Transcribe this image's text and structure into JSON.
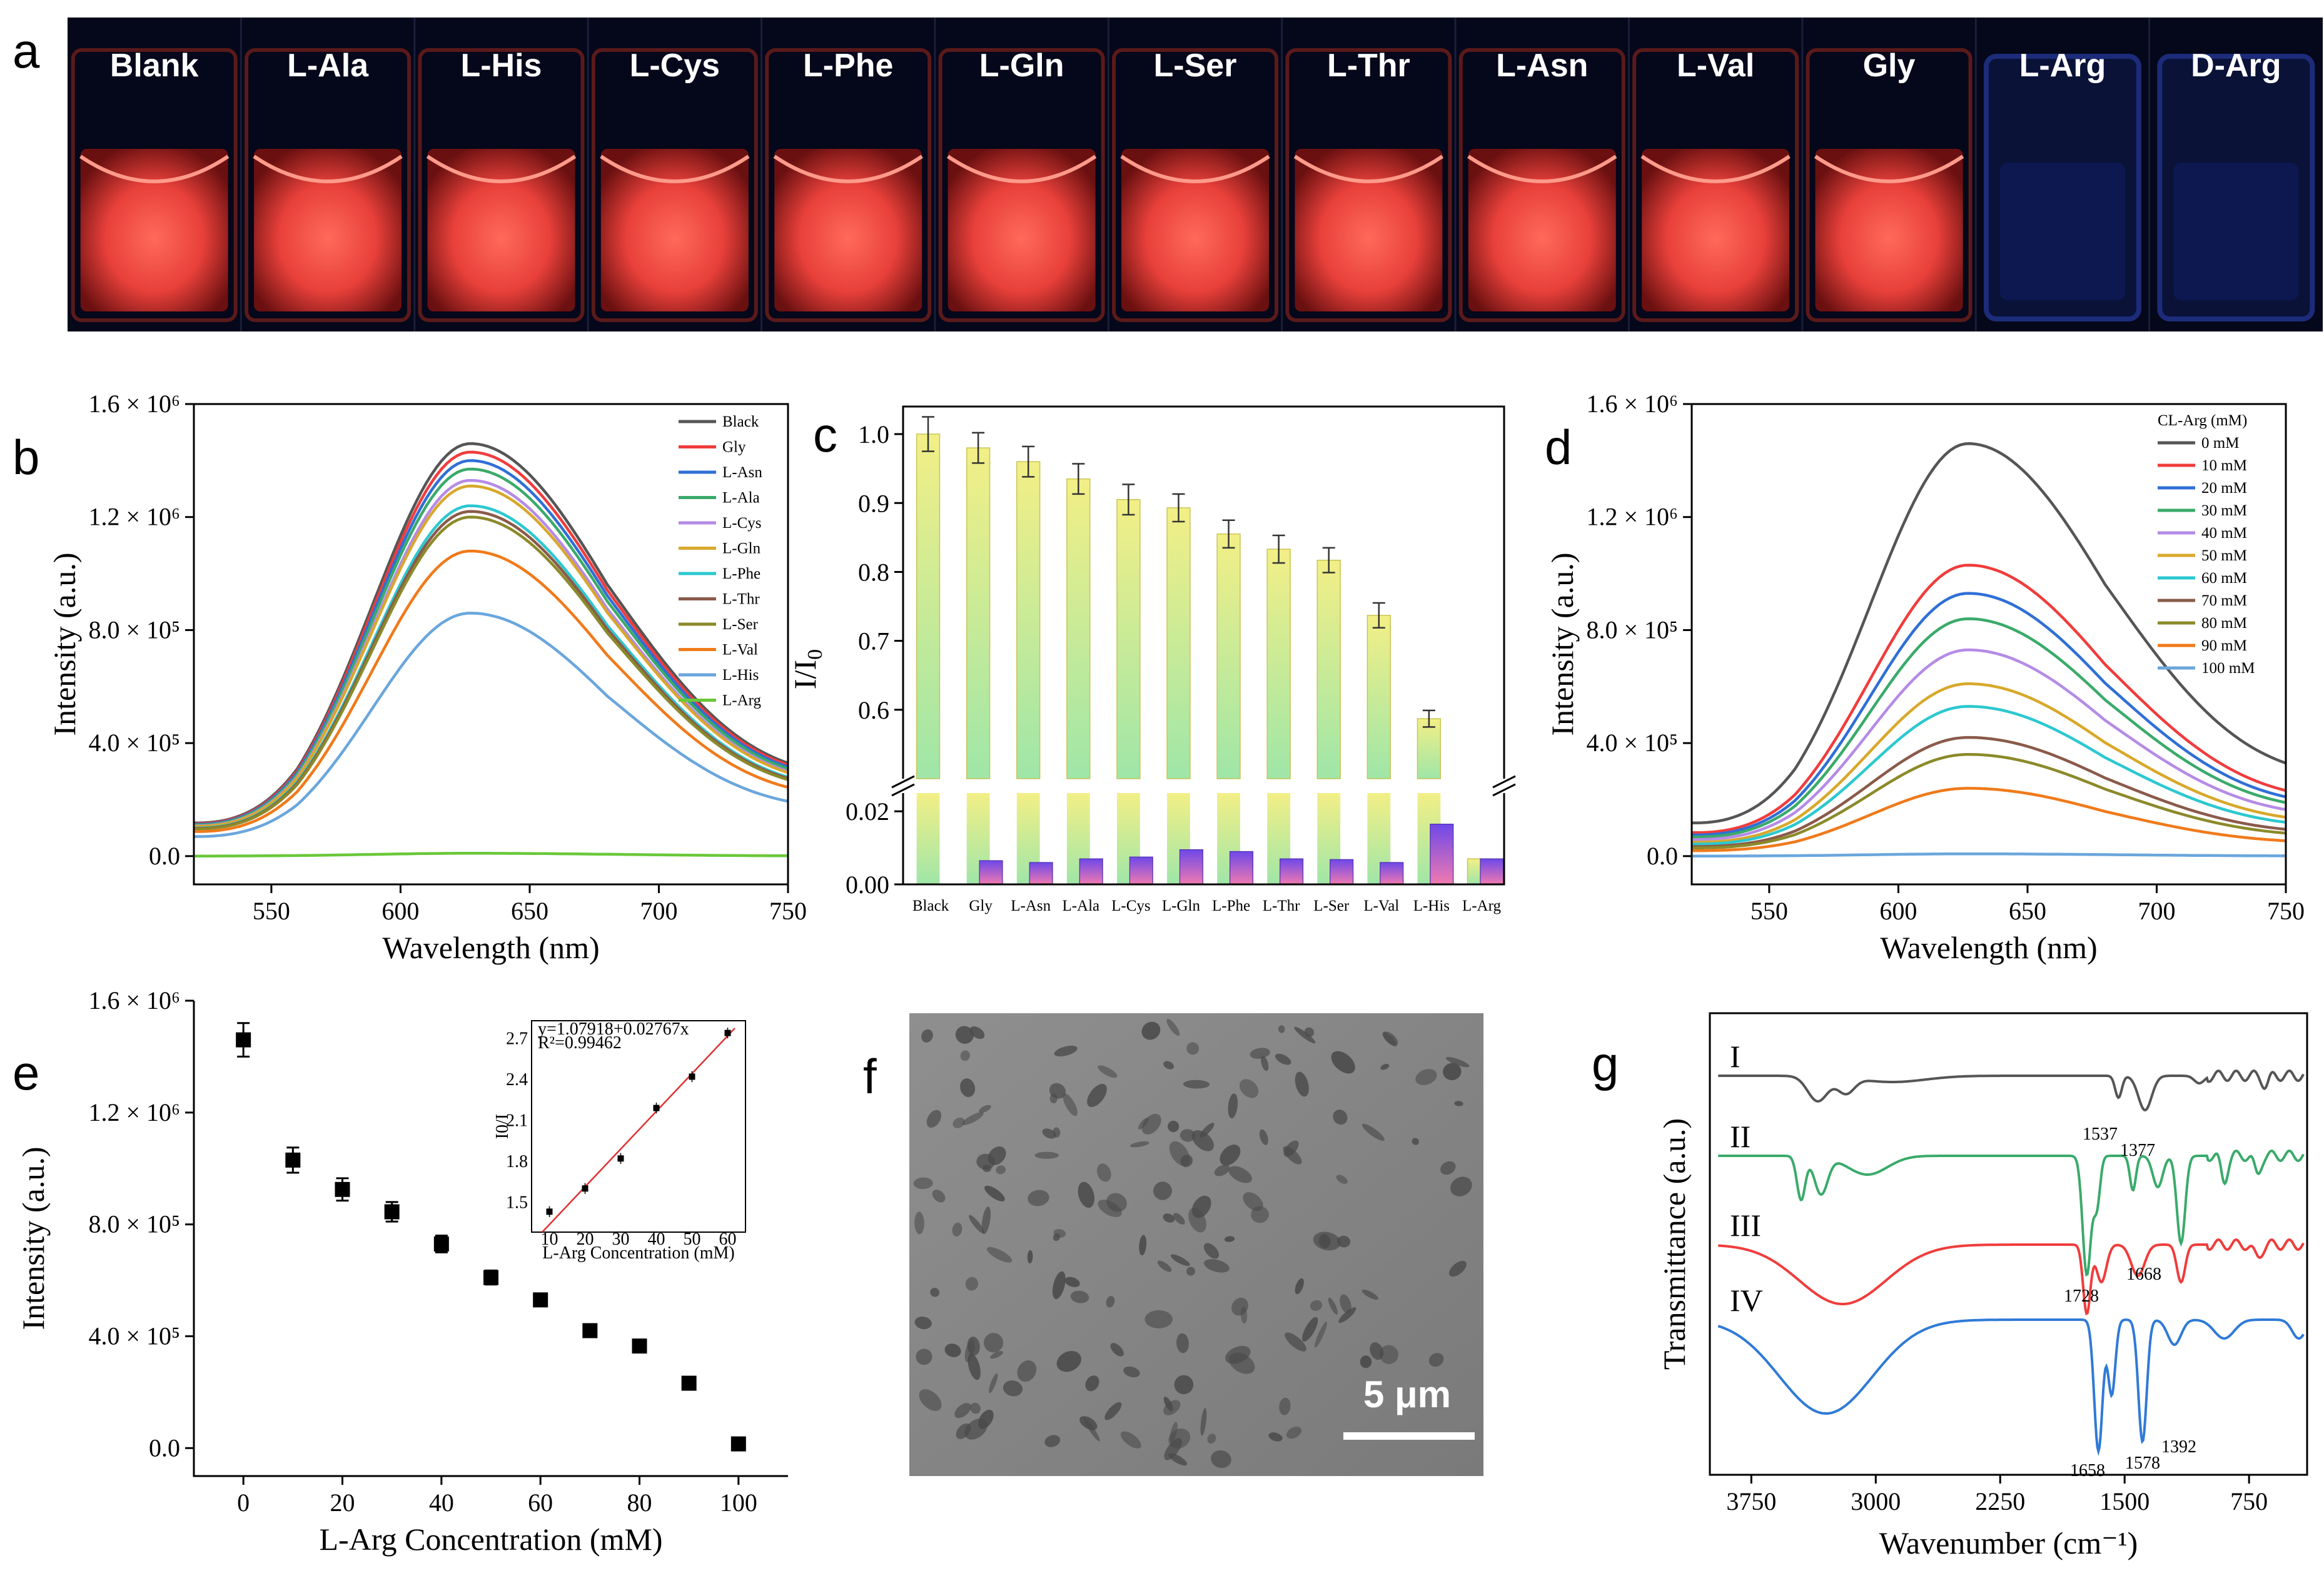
{
  "panel_letters": {
    "a": "a",
    "b": "b",
    "c": "c",
    "d": "d",
    "e": "e",
    "f": "f",
    "g": "g"
  },
  "photo": {
    "vials": [
      {
        "label": "Blank",
        "glow": "red"
      },
      {
        "label": "L-Ala",
        "glow": "red"
      },
      {
        "label": "L-His",
        "glow": "red"
      },
      {
        "label": "L-Cys",
        "glow": "red"
      },
      {
        "label": "L-Phe",
        "glow": "red"
      },
      {
        "label": "L-Gln",
        "glow": "red"
      },
      {
        "label": "L-Ser",
        "glow": "red"
      },
      {
        "label": "L-Thr",
        "glow": "red"
      },
      {
        "label": "L-Asn",
        "glow": "red"
      },
      {
        "label": "L-Val",
        "glow": "red"
      },
      {
        "label": "Gly",
        "glow": "red"
      },
      {
        "label": "L-Arg",
        "glow": "blue"
      },
      {
        "label": "D-Arg",
        "glow": "blue"
      }
    ]
  },
  "sem": {
    "scale_label": "5 μm"
  },
  "chart_data": [
    {
      "id": "b",
      "type": "line",
      "xlabel": "Wavelength (nm)",
      "ylabel": "Intensity (a.u.)",
      "xlim": [
        520,
        750
      ],
      "ylim": [
        -100000,
        1600000
      ],
      "xticks": [
        550,
        600,
        650,
        700,
        750
      ],
      "yticks": [
        {
          "v": 0,
          "t": "0.0"
        },
        {
          "v": 400000,
          "t": "4.0 × 10⁵"
        },
        {
          "v": 800000,
          "t": "8.0 × 10⁵"
        },
        {
          "v": 1200000,
          "t": "1.2 × 10⁶"
        },
        {
          "v": 1600000,
          "t": "1.6 × 10⁶"
        }
      ],
      "peak_nm": 627,
      "series": [
        {
          "name": "Black",
          "peak": 1460000,
          "color": "#555555"
        },
        {
          "name": "Gly",
          "peak": 1430000,
          "color": "#f03c3c"
        },
        {
          "name": "L-Asn",
          "peak": 1400000,
          "color": "#2f6fd6"
        },
        {
          "name": "L-Ala",
          "peak": 1370000,
          "color": "#3aaa6a"
        },
        {
          "name": "L-Cys",
          "peak": 1330000,
          "color": "#b58be6"
        },
        {
          "name": "L-Gln",
          "peak": 1310000,
          "color": "#d8a82a"
        },
        {
          "name": "L-Phe",
          "peak": 1240000,
          "color": "#2cc8d0"
        },
        {
          "name": "L-Thr",
          "peak": 1220000,
          "color": "#8a5a4a"
        },
        {
          "name": "L-Ser",
          "peak": 1200000,
          "color": "#8b8a2a"
        },
        {
          "name": "L-Val",
          "peak": 1080000,
          "color": "#f07a1a"
        },
        {
          "name": "L-His",
          "peak": 860000,
          "color": "#6aa6dc"
        },
        {
          "name": "L-Arg",
          "peak": 10000,
          "color": "#6ac83a"
        }
      ]
    },
    {
      "id": "c",
      "type": "bar",
      "ylabel": "I/I0",
      "categories": [
        "Black",
        "Gly",
        "L-Asn",
        "L-Ala",
        "L-Cys",
        "L-Gln",
        "L-Phe",
        "L-Thr",
        "L-Ser",
        "L-Val",
        "L-His",
        "L-Arg"
      ],
      "values": [
        1.0,
        0.98,
        0.96,
        0.935,
        0.905,
        0.893,
        0.855,
        0.833,
        0.817,
        0.737,
        0.587,
        0.007
      ],
      "errors": [
        0.025,
        0.022,
        0.022,
        0.022,
        0.022,
        0.02,
        0.02,
        0.02,
        0.018,
        0.018,
        0.012,
        0.0005
      ],
      "small_values": [
        null,
        0.0065,
        0.006,
        0.007,
        0.0075,
        0.0095,
        0.009,
        0.007,
        0.0068,
        0.006,
        0.0165,
        0.007
      ],
      "upper_ylim": [
        0.5,
        1.04
      ],
      "lower_ylim": [
        0,
        0.025
      ],
      "upper_yticks": [
        0.6,
        0.7,
        0.8,
        0.9,
        1.0
      ],
      "lower_yticks": [
        "0.00",
        "0.02"
      ]
    },
    {
      "id": "d",
      "type": "line",
      "xlabel": "Wavelength (nm)",
      "ylabel": "Intensity (a.u.)",
      "xlim": [
        520,
        750
      ],
      "ylim": [
        -100000,
        1600000
      ],
      "xticks": [
        550,
        600,
        650,
        700,
        750
      ],
      "yticks": [
        {
          "v": 0,
          "t": "0.0"
        },
        {
          "v": 400000,
          "t": "4.0 × 10⁵"
        },
        {
          "v": 800000,
          "t": "8.0 × 10⁵"
        },
        {
          "v": 1200000,
          "t": "1.2 × 10⁶"
        },
        {
          "v": 1600000,
          "t": "1.6 × 10⁶"
        }
      ],
      "legend_title": "CL-Arg (mM)",
      "peak_nm": 627,
      "series": [
        {
          "name": "0 mM",
          "peak": 1460000,
          "color": "#555555"
        },
        {
          "name": "10 mM",
          "peak": 1030000,
          "color": "#f03c3c"
        },
        {
          "name": "20 mM",
          "peak": 930000,
          "color": "#2f6fd6"
        },
        {
          "name": "30 mM",
          "peak": 840000,
          "color": "#3aaa6a"
        },
        {
          "name": "40 mM",
          "peak": 730000,
          "color": "#b58be6"
        },
        {
          "name": "50 mM",
          "peak": 610000,
          "color": "#d8a82a"
        },
        {
          "name": "60 mM",
          "peak": 530000,
          "color": "#2cc8d0"
        },
        {
          "name": "70 mM",
          "peak": 420000,
          "color": "#8a5a4a"
        },
        {
          "name": "80 mM",
          "peak": 360000,
          "color": "#8b8a2a"
        },
        {
          "name": "90 mM",
          "peak": 240000,
          "color": "#f07a1a"
        },
        {
          "name": "100 mM",
          "peak": 8000,
          "color": "#6aa6dc"
        }
      ]
    },
    {
      "id": "e",
      "type": "scatter",
      "xlabel": "L-Arg Concentration (mM)",
      "ylabel": "Intensity (a.u.)",
      "xlim": [
        -10,
        110
      ],
      "ylim": [
        -100000,
        1600000
      ],
      "xticks": [
        0,
        20,
        40,
        60,
        80,
        100
      ],
      "yticks": [
        {
          "v": 0,
          "t": "0.0"
        },
        {
          "v": 400000,
          "t": "4.0 × 10⁵"
        },
        {
          "v": 800000,
          "t": "8.0 × 10⁵"
        },
        {
          "v": 1200000,
          "t": "1.2 × 10⁶"
        },
        {
          "v": 1600000,
          "t": "1.6 × 10⁶"
        }
      ],
      "x": [
        0,
        10,
        20,
        30,
        40,
        50,
        60,
        70,
        80,
        90,
        100
      ],
      "y": [
        1460000,
        1030000,
        925000,
        845000,
        730000,
        610000,
        530000,
        420000,
        365000,
        232000,
        15000
      ],
      "err": [
        60000,
        45000,
        40000,
        35000,
        30000,
        25000,
        0,
        0,
        0,
        0,
        0
      ],
      "inset": {
        "equation": "y=1.07918+0.02767x",
        "r2": "R²=0.99462",
        "xlabel": "L-Arg Concentration (mM)",
        "ylabel": "I0/I",
        "xlim": [
          5,
          65
        ],
        "ylim": [
          1.3,
          2.85
        ],
        "xticks": [
          10,
          20,
          30,
          40,
          50,
          60
        ],
        "yticks": [
          "1.5",
          "1.8",
          "2.1",
          "2.4",
          "2.7"
        ],
        "x": [
          10,
          20,
          30,
          40,
          50,
          60
        ],
        "y": [
          1.45,
          1.62,
          1.84,
          2.21,
          2.44,
          2.76
        ]
      }
    },
    {
      "id": "g",
      "type": "line",
      "xlabel": "Wavenumber (cm⁻¹)",
      "ylabel": "Transmittance (a.u.)",
      "xticks": [
        "3750",
        "3000",
        "2250",
        "1500",
        "750"
      ],
      "series": [
        {
          "name": "I",
          "color": "#555555"
        },
        {
          "name": "II",
          "color": "#3aaa6a"
        },
        {
          "name": "III",
          "color": "#f03c3c"
        },
        {
          "name": "IV",
          "color": "#2f7ad6"
        }
      ],
      "annotations": [
        "1537",
        "1377",
        "1668",
        "1728",
        "1658",
        "1578",
        "1392"
      ]
    }
  ]
}
